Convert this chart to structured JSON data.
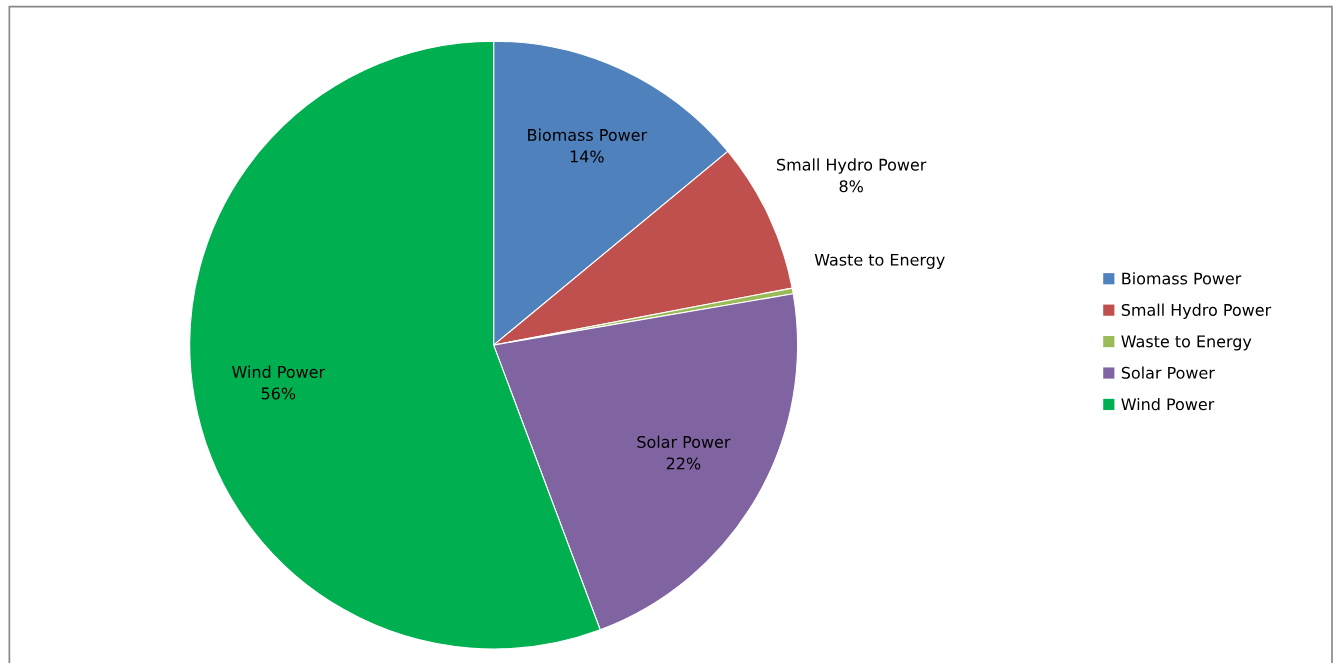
{
  "chart_data": {
    "type": "pie",
    "categories": [
      "Biomass Power",
      "Small Hydro Power",
      "Waste to Energy",
      "Solar Power",
      "Wind Power"
    ],
    "values": [
      14,
      8,
      0.3,
      22,
      55.7
    ],
    "value_labels": [
      "14%",
      "8%",
      null,
      "22%",
      "56%"
    ],
    "colors": [
      "#4f81bd",
      "#c0504d",
      "#9bbb59",
      "#8064a2",
      "#00b050"
    ],
    "legend": "right"
  }
}
